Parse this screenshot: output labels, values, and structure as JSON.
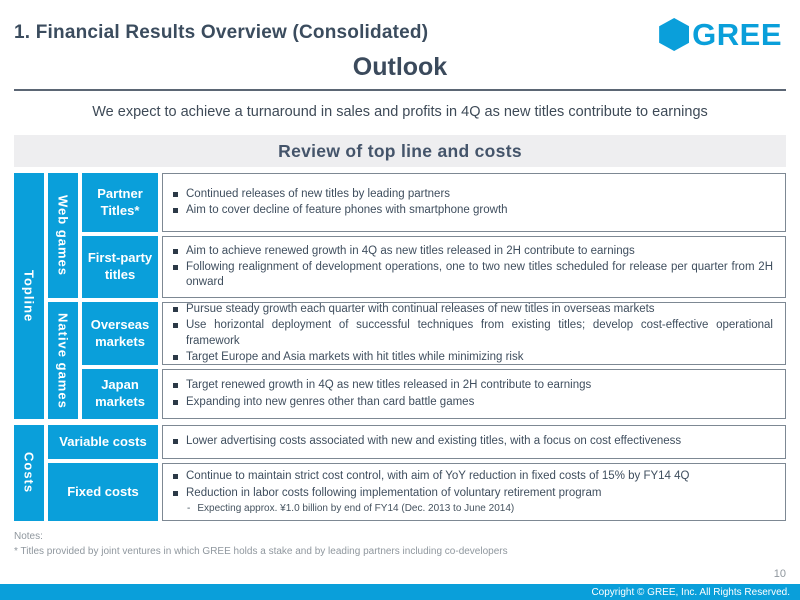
{
  "slide": {
    "section_title": "1. Financial Results Overview (Consolidated)",
    "title": "Outlook",
    "subtitle": "We expect to achieve a turnaround in sales and profits in 4Q as new titles contribute to earnings",
    "banner": "Review of top line and costs",
    "notes_label": "Notes:",
    "notes_text": "* Titles provided by joint ventures in which GREE holds a stake and by leading partners including co-developers",
    "page_number": "10",
    "footer_text": "Copyright © GREE, Inc. All Rights Reserved."
  },
  "logo": {
    "text": "GREE",
    "hexagon_icon": "gree-hexagon-icon",
    "color": "#0a9fda"
  },
  "colors": {
    "brand_blue": "#0a9fda",
    "dark_slate_text": "#3b4c5e",
    "banner_background": "#eeeef0",
    "bullet_square": "#2c3947",
    "content_border": "#7d8893"
  },
  "table": {
    "topline": {
      "label": "Topline",
      "subgroups": [
        {
          "label": "Web games"
        },
        {
          "label": "Native games"
        }
      ],
      "rows": [
        {
          "label": "Partner Titles*",
          "bullets": [
            "Continued releases of new titles by leading partners",
            "Aim to cover decline of feature phones with smartphone growth"
          ]
        },
        {
          "label": "First-party titles",
          "bullets": [
            "Aim to achieve renewed growth in 4Q as new titles released in 2H contribute to earnings",
            "Following realignment of development operations, one to two new titles scheduled for release per quarter from 2H onward"
          ]
        },
        {
          "label": "Overseas markets",
          "bullets": [
            "Pursue steady growth each quarter with continual releases of new titles in overseas markets",
            "Use horizontal deployment of successful techniques from existing titles; develop cost-effective operational framework",
            "Target Europe and Asia markets with hit titles while minimizing risk"
          ]
        },
        {
          "label": "Japan markets",
          "bullets": [
            "Target renewed growth in 4Q as new titles released in 2H contribute to earnings",
            "Expanding into new genres other than card battle games"
          ]
        }
      ]
    },
    "costs": {
      "label": "Costs",
      "rows": [
        {
          "label": "Variable costs",
          "bullets": [
            "Lower advertising costs associated with new and existing titles, with a focus on cost effectiveness"
          ]
        },
        {
          "label": "Fixed costs",
          "bullets": [
            "Continue to maintain strict cost control, with aim of YoY reduction in fixed costs of 15% by FY14 4Q",
            "Reduction in labor costs following implementation of voluntary retirement program"
          ],
          "sub_bullet_marker": "-",
          "sub_bullet": "Expecting approx. ¥1.0 billion by end of FY14 (Dec. 2013 to June 2014)"
        }
      ]
    }
  }
}
